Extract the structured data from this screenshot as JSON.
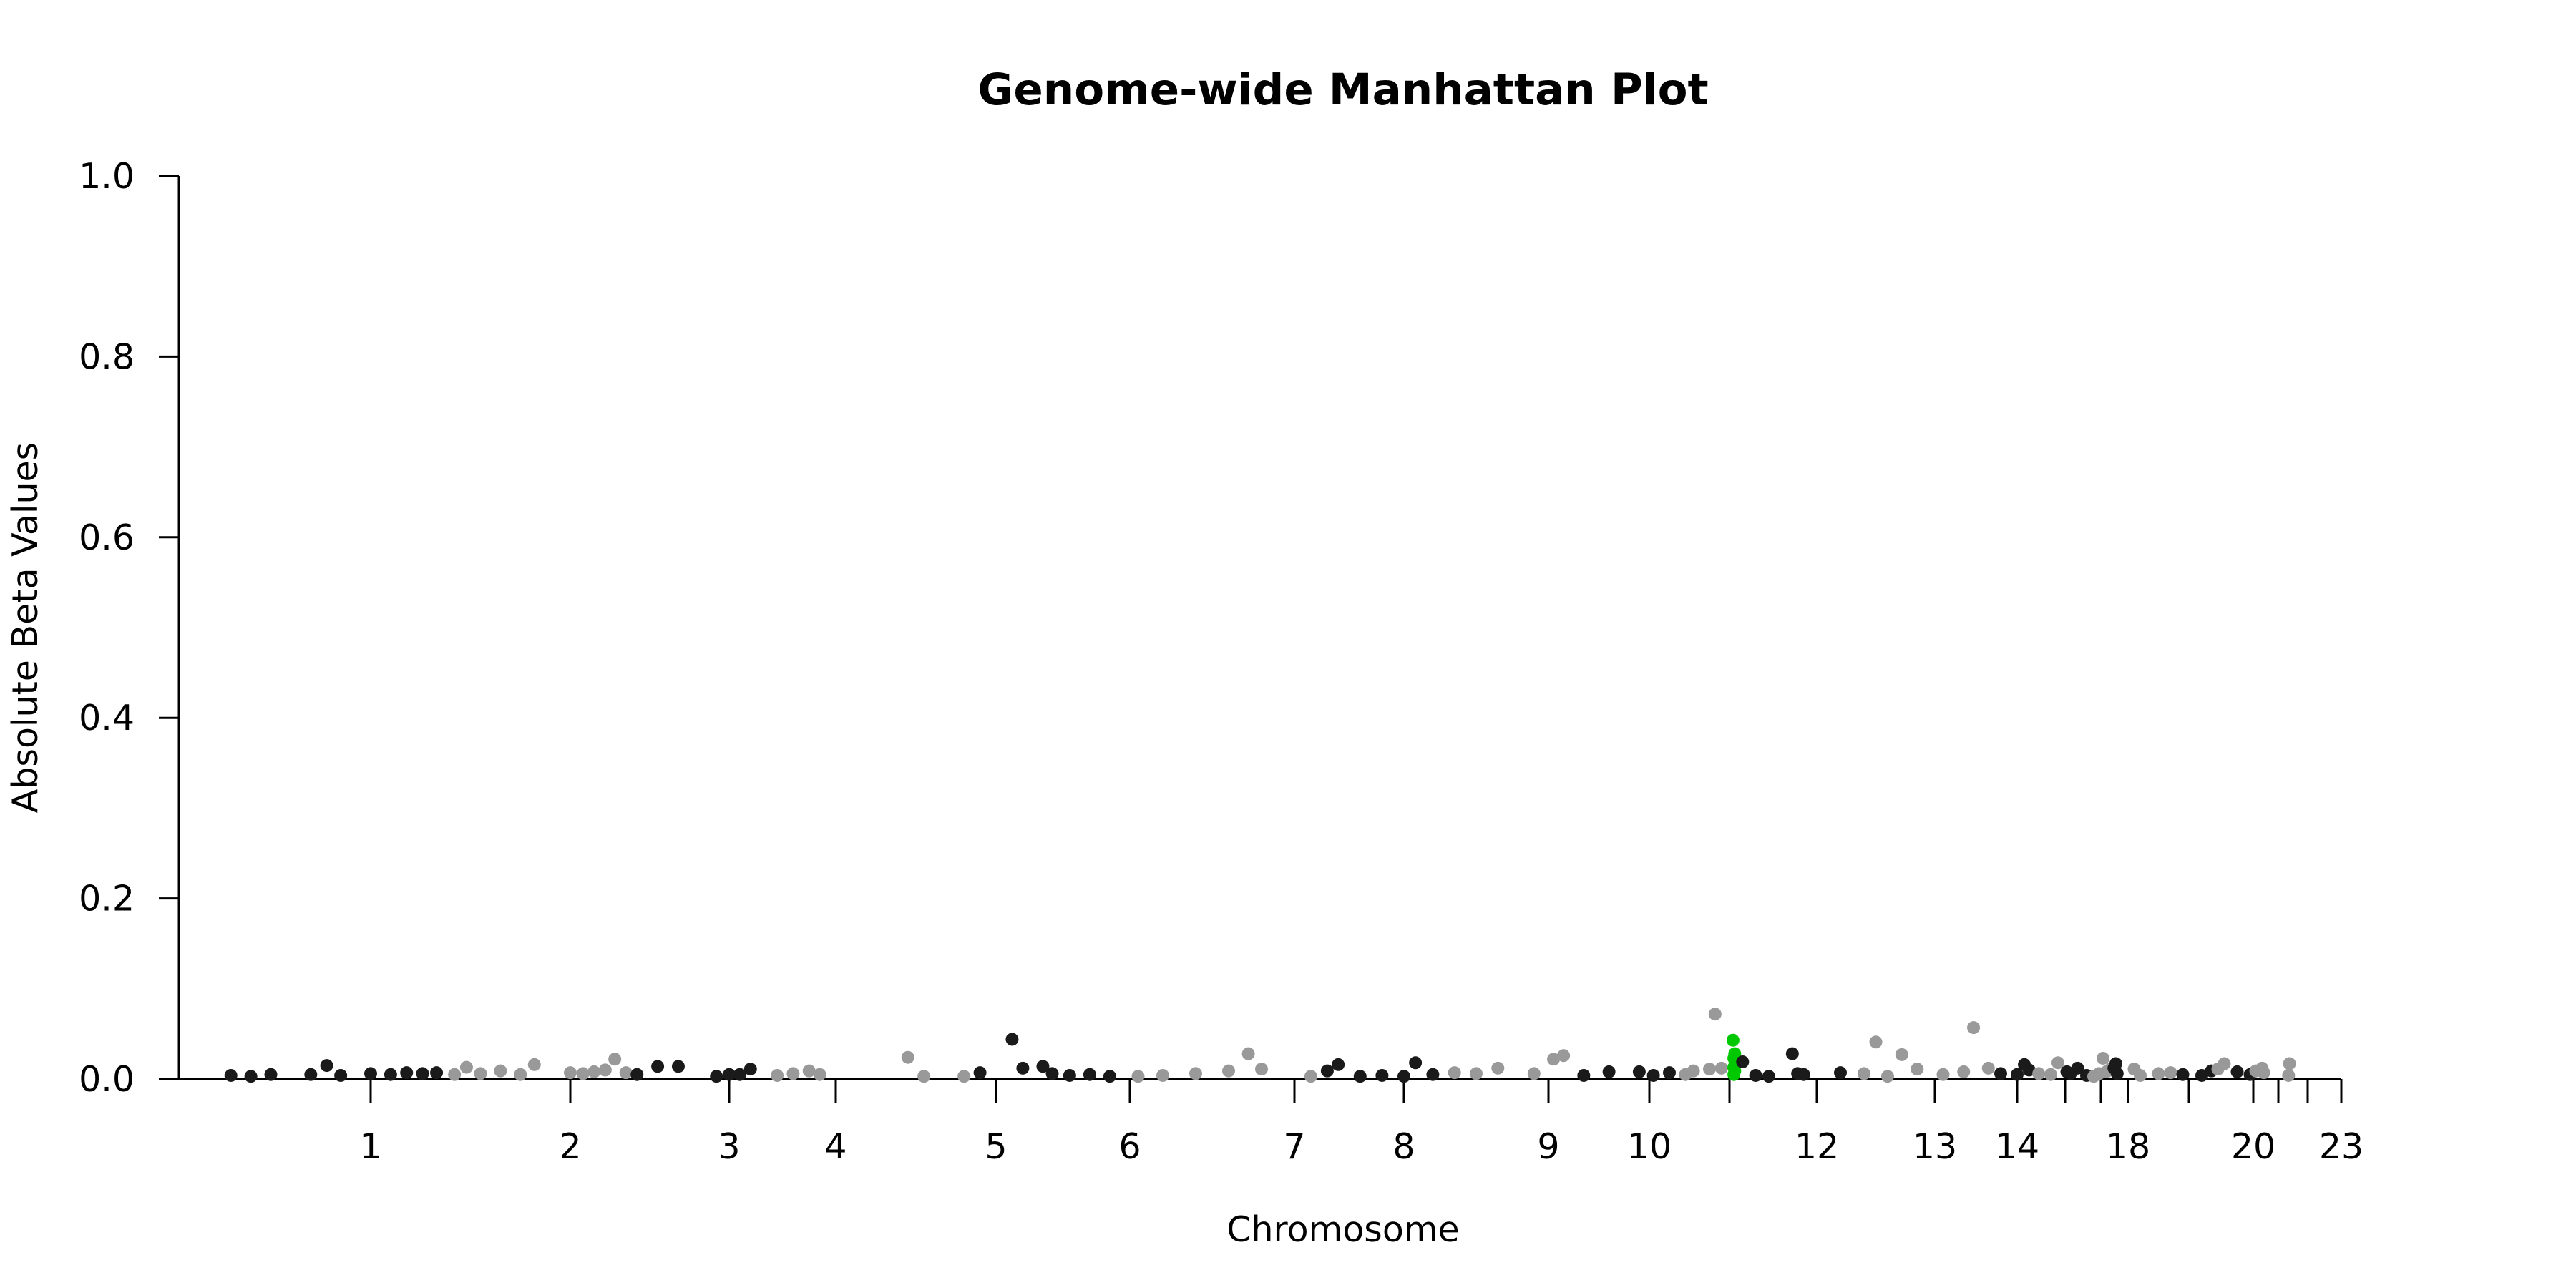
{
  "chart_data": {
    "type": "scatter",
    "title": "Genome-wide Manhattan Plot",
    "xlabel": "Chromosome",
    "ylabel": "Absolute Beta Values",
    "ylim": [
      0,
      1.0
    ],
    "y_ticks": [
      "0.0",
      "0.2",
      "0.4",
      "0.6",
      "0.8",
      "1.0"
    ],
    "x_ticks": [
      "1",
      "2",
      "3",
      "4",
      "5",
      "6",
      "7",
      "8",
      "9",
      "10",
      "",
      "12",
      "13",
      "14",
      "",
      "",
      "18",
      "",
      "20",
      "",
      "",
      "23"
    ],
    "grid": false,
    "legend": "none",
    "colors": {
      "dark": "#1a1a1a",
      "light": "#999999",
      "highlight": "#00c800"
    },
    "points": [
      {
        "x": -0.7,
        "y": 0.004,
        "c": "dark"
      },
      {
        "x": -0.6,
        "y": 0.003,
        "c": "dark"
      },
      {
        "x": -0.5,
        "y": 0.005,
        "c": "dark"
      },
      {
        "x": -0.3,
        "y": 0.005,
        "c": "dark"
      },
      {
        "x": -0.22,
        "y": 0.015,
        "c": "dark"
      },
      {
        "x": -0.15,
        "y": 0.004,
        "c": "dark"
      },
      {
        "x": 0.0,
        "y": 0.006,
        "c": "dark"
      },
      {
        "x": 0.1,
        "y": 0.005,
        "c": "dark"
      },
      {
        "x": 0.18,
        "y": 0.007,
        "c": "dark"
      },
      {
        "x": 0.26,
        "y": 0.006,
        "c": "dark"
      },
      {
        "x": 0.33,
        "y": 0.007,
        "c": "dark"
      },
      {
        "x": 0.42,
        "y": 0.005,
        "c": "light"
      },
      {
        "x": 0.48,
        "y": 0.013,
        "c": "light"
      },
      {
        "x": 0.55,
        "y": 0.006,
        "c": "light"
      },
      {
        "x": 0.65,
        "y": 0.009,
        "c": "light"
      },
      {
        "x": 0.75,
        "y": 0.005,
        "c": "light"
      },
      {
        "x": 0.82,
        "y": 0.016,
        "c": "light"
      },
      {
        "x": 1.0,
        "y": 0.007,
        "c": "light"
      },
      {
        "x": 1.08,
        "y": 0.006,
        "c": "light"
      },
      {
        "x": 1.15,
        "y": 0.008,
        "c": "light"
      },
      {
        "x": 1.22,
        "y": 0.01,
        "c": "light"
      },
      {
        "x": 1.28,
        "y": 0.022,
        "c": "light"
      },
      {
        "x": 1.35,
        "y": 0.007,
        "c": "light"
      },
      {
        "x": 1.42,
        "y": 0.005,
        "c": "dark"
      },
      {
        "x": 1.55,
        "y": 0.014,
        "c": "dark"
      },
      {
        "x": 1.68,
        "y": 0.014,
        "c": "dark"
      },
      {
        "x": 1.92,
        "y": 0.003,
        "c": "dark"
      },
      {
        "x": 2.0,
        "y": 0.005,
        "c": "dark"
      },
      {
        "x": 2.1,
        "y": 0.005,
        "c": "dark"
      },
      {
        "x": 2.2,
        "y": 0.011,
        "c": "dark"
      },
      {
        "x": 2.45,
        "y": 0.004,
        "c": "light"
      },
      {
        "x": 2.6,
        "y": 0.006,
        "c": "light"
      },
      {
        "x": 2.75,
        "y": 0.009,
        "c": "light"
      },
      {
        "x": 2.85,
        "y": 0.005,
        "c": "light"
      },
      {
        "x": 3.45,
        "y": 0.024,
        "c": "light"
      },
      {
        "x": 3.55,
        "y": 0.003,
        "c": "light"
      },
      {
        "x": 3.8,
        "y": 0.003,
        "c": "light"
      },
      {
        "x": 3.9,
        "y": 0.007,
        "c": "dark"
      },
      {
        "x": 4.12,
        "y": 0.044,
        "c": "dark"
      },
      {
        "x": 4.2,
        "y": 0.012,
        "c": "dark"
      },
      {
        "x": 4.35,
        "y": 0.014,
        "c": "dark"
      },
      {
        "x": 4.42,
        "y": 0.006,
        "c": "dark"
      },
      {
        "x": 4.55,
        "y": 0.004,
        "c": "dark"
      },
      {
        "x": 4.7,
        "y": 0.005,
        "c": "dark"
      },
      {
        "x": 4.85,
        "y": 0.003,
        "c": "dark"
      },
      {
        "x": 5.05,
        "y": 0.003,
        "c": "light"
      },
      {
        "x": 5.2,
        "y": 0.004,
        "c": "light"
      },
      {
        "x": 5.4,
        "y": 0.006,
        "c": "light"
      },
      {
        "x": 5.6,
        "y": 0.009,
        "c": "light"
      },
      {
        "x": 5.72,
        "y": 0.028,
        "c": "light"
      },
      {
        "x": 5.8,
        "y": 0.011,
        "c": "light"
      },
      {
        "x": 6.15,
        "y": 0.003,
        "c": "light"
      },
      {
        "x": 6.3,
        "y": 0.009,
        "c": "dark"
      },
      {
        "x": 6.4,
        "y": 0.016,
        "c": "dark"
      },
      {
        "x": 6.6,
        "y": 0.003,
        "c": "dark"
      },
      {
        "x": 6.8,
        "y": 0.004,
        "c": "dark"
      },
      {
        "x": 7.0,
        "y": 0.003,
        "c": "dark"
      },
      {
        "x": 7.08,
        "y": 0.018,
        "c": "dark"
      },
      {
        "x": 7.2,
        "y": 0.005,
        "c": "dark"
      },
      {
        "x": 7.35,
        "y": 0.007,
        "c": "light"
      },
      {
        "x": 7.5,
        "y": 0.006,
        "c": "light"
      },
      {
        "x": 7.65,
        "y": 0.012,
        "c": "light"
      },
      {
        "x": 7.9,
        "y": 0.006,
        "c": "light"
      },
      {
        "x": 8.05,
        "y": 0.022,
        "c": "light"
      },
      {
        "x": 8.15,
        "y": 0.026,
        "c": "light"
      },
      {
        "x": 8.35,
        "y": 0.004,
        "c": "dark"
      },
      {
        "x": 8.6,
        "y": 0.008,
        "c": "dark"
      },
      {
        "x": 8.9,
        "y": 0.008,
        "c": "dark"
      },
      {
        "x": 9.05,
        "y": 0.004,
        "c": "dark"
      },
      {
        "x": 9.25,
        "y": 0.007,
        "c": "dark"
      },
      {
        "x": 9.45,
        "y": 0.005,
        "c": "light"
      },
      {
        "x": 9.55,
        "y": 0.009,
        "c": "light"
      },
      {
        "x": 9.75,
        "y": 0.011,
        "c": "light"
      },
      {
        "x": 9.82,
        "y": 0.072,
        "c": "light"
      },
      {
        "x": 9.9,
        "y": 0.012,
        "c": "light"
      },
      {
        "x": 10.04,
        "y": 0.043,
        "c": "highlight"
      },
      {
        "x": 10.06,
        "y": 0.028,
        "c": "highlight"
      },
      {
        "x": 10.05,
        "y": 0.023,
        "c": "highlight"
      },
      {
        "x": 10.07,
        "y": 0.018,
        "c": "highlight"
      },
      {
        "x": 10.05,
        "y": 0.013,
        "c": "highlight"
      },
      {
        "x": 10.06,
        "y": 0.009,
        "c": "highlight"
      },
      {
        "x": 10.05,
        "y": 0.005,
        "c": "highlight"
      },
      {
        "x": 10.15,
        "y": 0.019,
        "c": "dark"
      },
      {
        "x": 10.3,
        "y": 0.004,
        "c": "dark"
      },
      {
        "x": 10.45,
        "y": 0.003,
        "c": "dark"
      },
      {
        "x": 10.72,
        "y": 0.028,
        "c": "dark"
      },
      {
        "x": 10.78,
        "y": 0.006,
        "c": "dark"
      },
      {
        "x": 10.85,
        "y": 0.005,
        "c": "dark"
      },
      {
        "x": 11.2,
        "y": 0.007,
        "c": "dark"
      },
      {
        "x": 11.4,
        "y": 0.006,
        "c": "light"
      },
      {
        "x": 11.5,
        "y": 0.041,
        "c": "light"
      },
      {
        "x": 11.6,
        "y": 0.003,
        "c": "light"
      },
      {
        "x": 11.72,
        "y": 0.027,
        "c": "light"
      },
      {
        "x": 11.85,
        "y": 0.011,
        "c": "light"
      },
      {
        "x": 12.1,
        "y": 0.005,
        "c": "light"
      },
      {
        "x": 12.35,
        "y": 0.008,
        "c": "light"
      },
      {
        "x": 12.47,
        "y": 0.057,
        "c": "light"
      },
      {
        "x": 12.65,
        "y": 0.012,
        "c": "light"
      },
      {
        "x": 12.8,
        "y": 0.006,
        "c": "dark"
      },
      {
        "x": 13.0,
        "y": 0.005,
        "c": "dark"
      },
      {
        "x": 13.15,
        "y": 0.016,
        "c": "dark"
      },
      {
        "x": 13.25,
        "y": 0.01,
        "c": "dark"
      },
      {
        "x": 13.45,
        "y": 0.006,
        "c": "light"
      },
      {
        "x": 13.7,
        "y": 0.005,
        "c": "light"
      },
      {
        "x": 13.85,
        "y": 0.018,
        "c": "light"
      },
      {
        "x": 14.05,
        "y": 0.008,
        "c": "dark"
      },
      {
        "x": 14.15,
        "y": 0.006,
        "c": "dark"
      },
      {
        "x": 14.35,
        "y": 0.012,
        "c": "dark"
      },
      {
        "x": 14.6,
        "y": 0.004,
        "c": "dark"
      },
      {
        "x": 14.8,
        "y": 0.003,
        "c": "light"
      },
      {
        "x": 14.95,
        "y": 0.006,
        "c": "light"
      },
      {
        "x": 15.08,
        "y": 0.023,
        "c": "light"
      },
      {
        "x": 15.2,
        "y": 0.008,
        "c": "light"
      },
      {
        "x": 15.35,
        "y": 0.011,
        "c": "light"
      },
      {
        "x": 15.48,
        "y": 0.012,
        "c": "dark"
      },
      {
        "x": 15.55,
        "y": 0.017,
        "c": "dark"
      },
      {
        "x": 15.6,
        "y": 0.006,
        "c": "dark"
      },
      {
        "x": 16.1,
        "y": 0.011,
        "c": "light"
      },
      {
        "x": 16.2,
        "y": 0.004,
        "c": "light"
      },
      {
        "x": 16.5,
        "y": 0.006,
        "c": "light"
      },
      {
        "x": 16.7,
        "y": 0.007,
        "c": "light"
      },
      {
        "x": 16.9,
        "y": 0.005,
        "c": "dark"
      },
      {
        "x": 17.2,
        "y": 0.004,
        "c": "dark"
      },
      {
        "x": 17.35,
        "y": 0.009,
        "c": "dark"
      },
      {
        "x": 17.45,
        "y": 0.011,
        "c": "light"
      },
      {
        "x": 17.55,
        "y": 0.017,
        "c": "light"
      },
      {
        "x": 17.75,
        "y": 0.008,
        "c": "dark"
      },
      {
        "x": 17.95,
        "y": 0.005,
        "c": "dark"
      },
      {
        "x": 18.1,
        "y": 0.009,
        "c": "light"
      },
      {
        "x": 18.35,
        "y": 0.012,
        "c": "light"
      },
      {
        "x": 18.42,
        "y": 0.007,
        "c": "light"
      },
      {
        "x": 19.35,
        "y": 0.004,
        "c": "light"
      },
      {
        "x": 19.38,
        "y": 0.017,
        "c": "light"
      }
    ]
  }
}
